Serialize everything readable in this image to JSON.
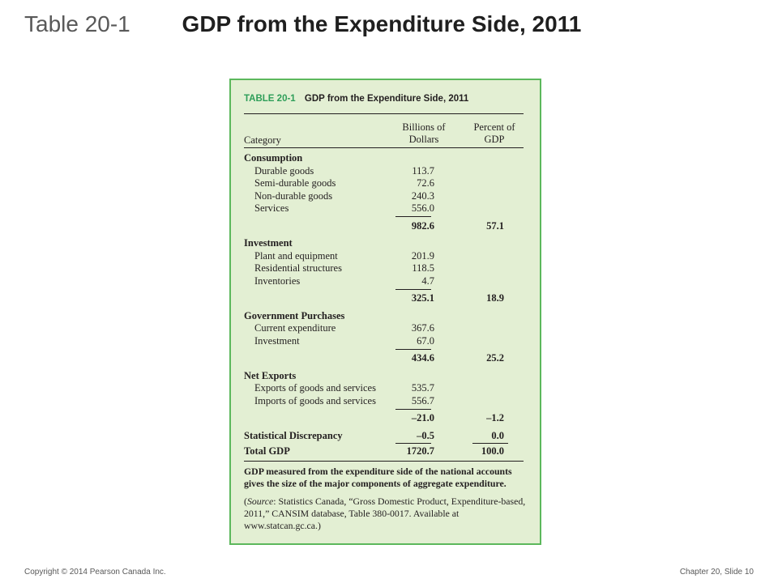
{
  "slide": {
    "title_number": "Table 20-1",
    "title_text": "GDP from the Expenditure Side, 2011"
  },
  "table": {
    "label": "TABLE 20-1",
    "title": "GDP from the Expenditure Side, 2011",
    "headers": {
      "category": "Category",
      "billions_line1": "Billions of",
      "billions_line2": "Dollars",
      "percent_line1": "Percent of",
      "percent_line2": "GDP"
    },
    "rows": [
      {
        "label": "Consumption",
        "v1": "",
        "v2": ""
      },
      {
        "label": "Durable goods",
        "v1": "113.7",
        "v2": ""
      },
      {
        "label": "Semi-durable goods",
        "v1": "72.6",
        "v2": ""
      },
      {
        "label": "Non-durable goods",
        "v1": "240.3",
        "v2": ""
      },
      {
        "label": "Services",
        "v1": "556.0",
        "v2": ""
      },
      {
        "label": "",
        "v1": "982.6",
        "v2": "57.1"
      },
      {
        "label": "Investment",
        "v1": "",
        "v2": ""
      },
      {
        "label": "Plant and equipment",
        "v1": "201.9",
        "v2": ""
      },
      {
        "label": "Residential structures",
        "v1": "118.5",
        "v2": ""
      },
      {
        "label": "Inventories",
        "v1": "4.7",
        "v2": ""
      },
      {
        "label": "",
        "v1": "325.1",
        "v2": "18.9"
      },
      {
        "label": "Government Purchases",
        "v1": "",
        "v2": ""
      },
      {
        "label": "Current expenditure",
        "v1": "367.6",
        "v2": ""
      },
      {
        "label": "Investment",
        "v1": "67.0",
        "v2": ""
      },
      {
        "label": "",
        "v1": "434.6",
        "v2": "25.2"
      },
      {
        "label": "Net Exports",
        "v1": "",
        "v2": ""
      },
      {
        "label": "Exports of goods and services",
        "v1": "535.7",
        "v2": ""
      },
      {
        "label": "Imports of goods and services",
        "v1": "556.7",
        "v2": ""
      },
      {
        "label": "",
        "v1": "–21.0",
        "v2": "–1.2"
      },
      {
        "label": "Statistical Discrepancy",
        "v1": "–0.5",
        "v2": "0.0"
      },
      {
        "label": "Total GDP",
        "v1": "1720.7",
        "v2": "100.0"
      }
    ],
    "caption_bold": "GDP measured from the expenditure side of the national accounts gives the size of the major components of aggregate expenditure.",
    "source_prefix": "(",
    "source_label": "Source",
    "source_text": ": Statistics Canada, “Gross Domestic Product, Expenditure-based, 2011,” CANSIM database, Table 380-0017. Available at www.statcan.gc.ca.)"
  },
  "footer": {
    "copyright": "Copyright © 2014 Pearson Canada Inc.",
    "slide_label": "Chapter 20, Slide",
    "slide_number": "10"
  },
  "colors": {
    "panel_bg": "#e3efd3",
    "panel_border": "#5cb85c",
    "label_green": "#2e9e59"
  }
}
